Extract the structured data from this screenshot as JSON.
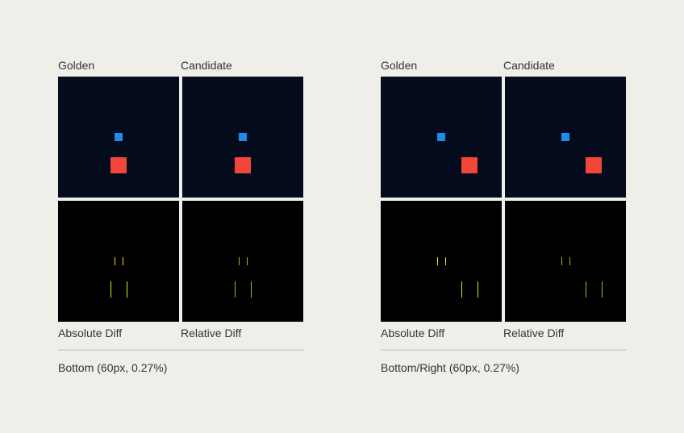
{
  "groups": [
    {
      "labels": {
        "golden": "Golden",
        "candidate": "Candidate",
        "absolute_diff": "Absolute Diff",
        "relative_diff": "Relative Diff"
      },
      "caption": "Bottom (60px, 0.27%)"
    },
    {
      "labels": {
        "golden": "Golden",
        "candidate": "Candidate",
        "absolute_diff": "Absolute Diff",
        "relative_diff": "Relative Diff"
      },
      "caption": "Bottom/Right (60px, 0.27%)"
    }
  ],
  "colors": {
    "page_background": "#efefea",
    "image_background": "#040b1c",
    "diff_background": "#000000",
    "blue_square": "#1f8ce8",
    "red_square": "#f2463a",
    "absolute_diff_line": "#f3e500",
    "relative_diff_line": "#b7ae1a",
    "divider": "#d6d6d2"
  }
}
